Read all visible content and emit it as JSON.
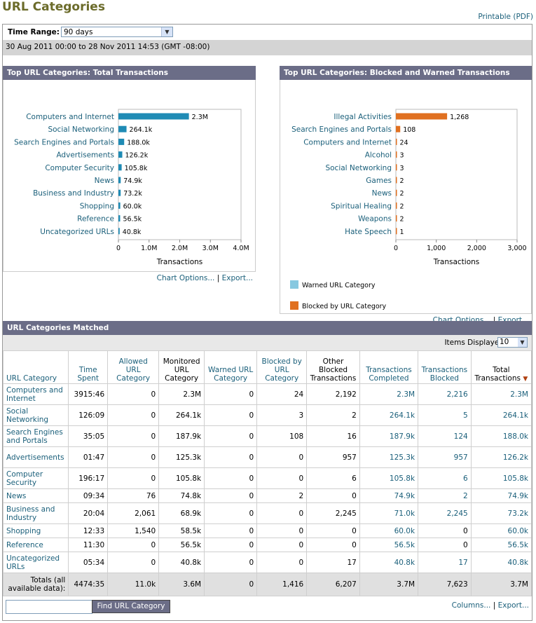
{
  "page": {
    "title": "URL Categories",
    "printable": "Printable (PDF)"
  },
  "time_range": {
    "label": "Time Range:",
    "value": "90 days",
    "date_range": "30 Aug 2011 00:00 to 28 Nov 2011 14:53 (GMT -08:00)"
  },
  "chart_options_label": "Chart Options...",
  "export_label": "Export...",
  "separator": "|",
  "chart_data": [
    {
      "type": "bar",
      "title": "Top URL Categories: Total Transactions",
      "xlabel": "Transactions",
      "categories": [
        "Computers and Internet",
        "Social Networking",
        "Search Engines and Portals",
        "Advertisements",
        "Computer Security",
        "News",
        "Business and Industry",
        "Shopping",
        "Reference",
        "Uncategorized URLs"
      ],
      "values": [
        2300000,
        264100,
        188000,
        126200,
        105800,
        74900,
        73200,
        60000,
        56500,
        40800
      ],
      "value_labels": [
        "2.3M",
        "264.1k",
        "188.0k",
        "126.2k",
        "105.8k",
        "74.9k",
        "73.2k",
        "60.0k",
        "56.5k",
        "40.8k"
      ],
      "xlim": [
        0,
        4000000
      ],
      "ticks": [
        0,
        1000000,
        2000000,
        3000000,
        4000000
      ],
      "tick_labels": [
        "0",
        "1.0M",
        "2.0M",
        "3.0M",
        "4.0M"
      ],
      "bar_color": "#1f8bb5"
    },
    {
      "type": "bar",
      "title": "Top URL Categories: Blocked and Warned Transactions",
      "xlabel": "Transactions",
      "categories": [
        "Illegal Activities",
        "Search Engines and Portals",
        "Computers and Internet",
        "Alcohol",
        "Social Networking",
        "Games",
        "News",
        "Spiritual Healing",
        "Weapons",
        "Hate Speech"
      ],
      "values": [
        1268,
        108,
        24,
        3,
        3,
        2,
        2,
        2,
        2,
        1
      ],
      "value_labels": [
        "1,268",
        "108",
        "24",
        "3",
        "3",
        "2",
        "2",
        "2",
        "2",
        "1"
      ],
      "xlim": [
        0,
        3000
      ],
      "ticks": [
        0,
        1000,
        2000,
        3000
      ],
      "tick_labels": [
        "0",
        "1,000",
        "2,000",
        "3,000"
      ],
      "bar_color": "#e07020",
      "legend": [
        {
          "label": "Warned URL Category",
          "color": "#87c8e0"
        },
        {
          "label": "Blocked by URL Category",
          "color": "#e07020"
        }
      ]
    }
  ],
  "matched": {
    "title": "URL Categories Matched",
    "items_label": "Items Displayed",
    "items_value": "10",
    "columns": [
      "URL Category",
      "Time Spent",
      "Allowed URL Category",
      "Monitored URL Category",
      "Warned URL Category",
      "Blocked by URL Category",
      "Other Blocked Transactions",
      "Transactions Completed",
      "Transactions Blocked",
      "Total Transactions"
    ],
    "sort_indicator": "▼",
    "rows": [
      [
        "Computers and Internet",
        "3915:46",
        "0",
        "2.3M",
        "0",
        "24",
        "2,192",
        "2.3M",
        "2,216",
        "2.3M"
      ],
      [
        "Social Networking",
        "126:09",
        "0",
        "264.1k",
        "0",
        "3",
        "2",
        "264.1k",
        "5",
        "264.1k"
      ],
      [
        "Search Engines and Portals",
        "35:05",
        "0",
        "187.9k",
        "0",
        "108",
        "16",
        "187.9k",
        "124",
        "188.0k"
      ],
      [
        "Advertisements",
        "01:47",
        "0",
        "125.3k",
        "0",
        "0",
        "957",
        "125.3k",
        "957",
        "126.2k"
      ],
      [
        "Computer Security",
        "196:17",
        "0",
        "105.8k",
        "0",
        "0",
        "6",
        "105.8k",
        "6",
        "105.8k"
      ],
      [
        "News",
        "09:34",
        "76",
        "74.8k",
        "0",
        "2",
        "0",
        "74.9k",
        "2",
        "74.9k"
      ],
      [
        "Business and Industry",
        "20:04",
        "2,061",
        "68.9k",
        "0",
        "0",
        "2,245",
        "71.0k",
        "2,245",
        "73.2k"
      ],
      [
        "Shopping",
        "12:33",
        "1,540",
        "58.5k",
        "0",
        "0",
        "0",
        "60.0k",
        "0",
        "60.0k"
      ],
      [
        "Reference",
        "11:30",
        "0",
        "56.5k",
        "0",
        "0",
        "0",
        "56.5k",
        "0",
        "56.5k"
      ],
      [
        "Uncategorized URLs",
        "05:34",
        "0",
        "40.8k",
        "0",
        "0",
        "17",
        "40.8k",
        "17",
        "40.8k"
      ]
    ],
    "totals": [
      "Totals (all available data):",
      "4474:35",
      "11.0k",
      "3.6M",
      "0",
      "1,416",
      "6,207",
      "3.7M",
      "7,623",
      "3.7M"
    ]
  },
  "bottom": {
    "find_button": "Find URL Category",
    "columns_link": "Columns...",
    "export_link": "Export..."
  }
}
